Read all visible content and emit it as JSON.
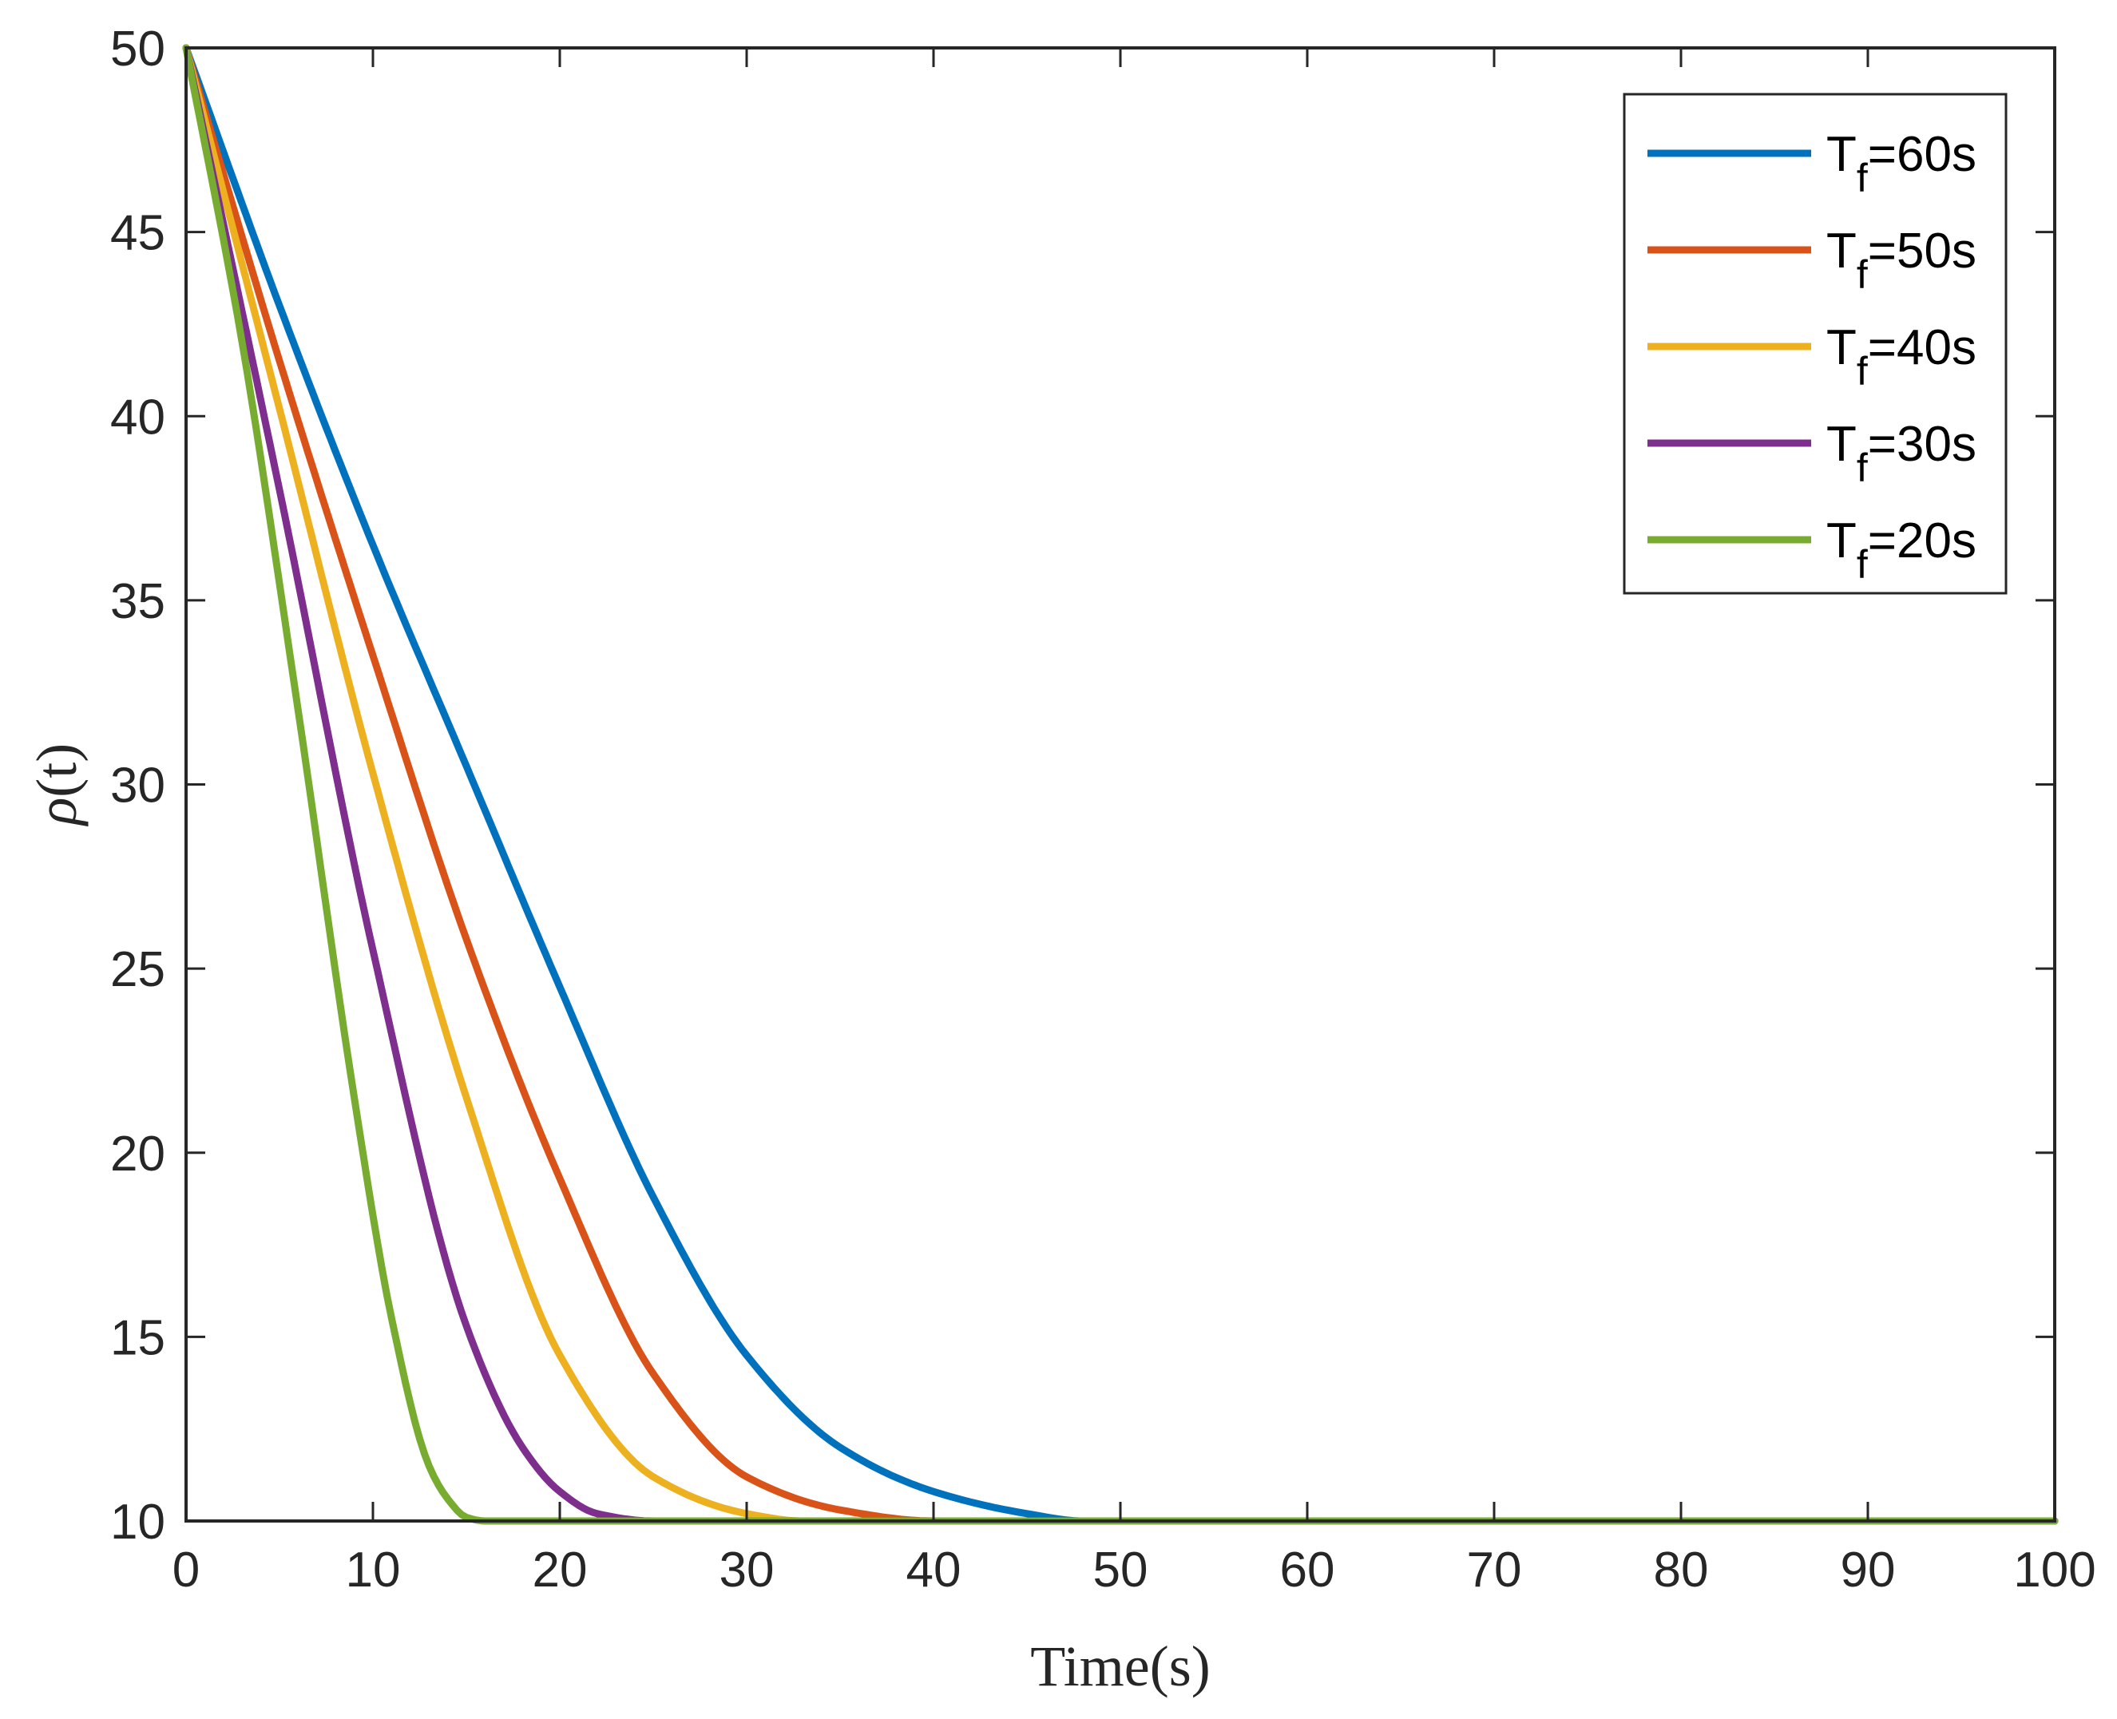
{
  "chart_data": {
    "type": "line",
    "title": "",
    "xlabel": "Time(s)",
    "ylabel_symbol": "ρ",
    "ylabel_arg": "(t)",
    "xlim": [
      0,
      100
    ],
    "ylim": [
      10,
      50
    ],
    "xticks": [
      0,
      10,
      20,
      30,
      40,
      50,
      60,
      70,
      80,
      90,
      100
    ],
    "yticks": [
      10,
      15,
      20,
      25,
      30,
      35,
      40,
      45,
      50
    ],
    "grid": false,
    "legend_position": "top-right",
    "initial_value": 50,
    "final_value": 10,
    "series": [
      {
        "name_main": "T",
        "name_sub": "f",
        "name_rest": "=60s",
        "color": "#0072BD",
        "x": [
          0,
          5,
          10,
          15,
          20,
          25,
          30,
          35,
          40,
          45,
          48,
          50,
          100
        ],
        "y": [
          50,
          43,
          36.5,
          30.5,
          24.5,
          18.8,
          14.5,
          12,
          10.8,
          10.2,
          10,
          10,
          10
        ]
      },
      {
        "name_main": "T",
        "name_sub": "f",
        "name_rest": "=50s",
        "color": "#D95319",
        "x": [
          0,
          5,
          10,
          15,
          20,
          25,
          30,
          35,
          40,
          100
        ],
        "y": [
          50,
          41.5,
          33.5,
          25.8,
          19.3,
          14,
          11.2,
          10.3,
          10,
          10
        ]
      },
      {
        "name_main": "T",
        "name_sub": "f",
        "name_rest": "=40s",
        "color": "#EDB120",
        "x": [
          0,
          5,
          10,
          15,
          20,
          25,
          30,
          33,
          100
        ],
        "y": [
          50,
          40.2,
          30.3,
          21.5,
          14.5,
          11.2,
          10.2,
          10,
          10
        ]
      },
      {
        "name_main": "T",
        "name_sub": "f",
        "name_rest": "=30s",
        "color": "#7E2F8E",
        "x": [
          0,
          5,
          10,
          15,
          18,
          20,
          22,
          25,
          100
        ],
        "y": [
          50,
          38,
          25.5,
          15.3,
          12,
          10.8,
          10.2,
          10,
          10
        ]
      },
      {
        "name_main": "T",
        "name_sub": "f",
        "name_rest": "=20s",
        "color": "#77AC30",
        "x": [
          0,
          3,
          6,
          9,
          11,
          13,
          14,
          15,
          16,
          100
        ],
        "y": [
          50,
          42,
          32,
          21.5,
          15.5,
          11.5,
          10.6,
          10.1,
          10,
          10
        ]
      }
    ]
  }
}
